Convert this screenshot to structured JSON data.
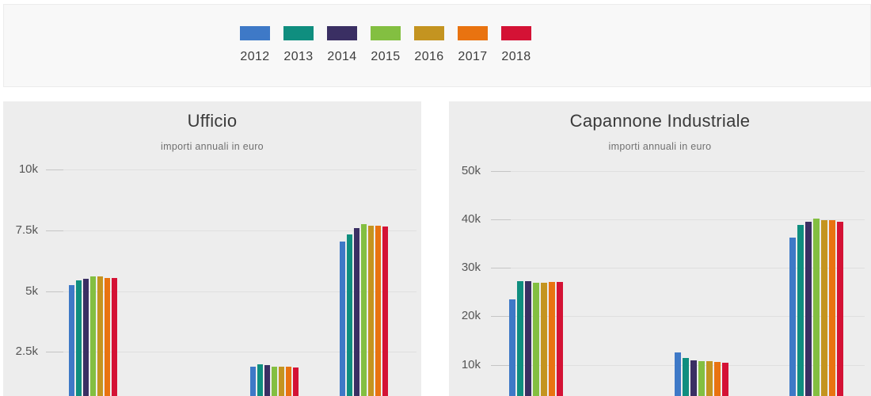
{
  "legend": {
    "items": [
      {
        "label": "2012",
        "color": "#3e79c7"
      },
      {
        "label": "2013",
        "color": "#0f8e7f"
      },
      {
        "label": "2014",
        "color": "#3a2f63"
      },
      {
        "label": "2015",
        "color": "#83bf41"
      },
      {
        "label": "2016",
        "color": "#c49420"
      },
      {
        "label": "2017",
        "color": "#e97310"
      },
      {
        "label": "2018",
        "color": "#d41235"
      }
    ]
  },
  "chart_data": [
    {
      "type": "bar",
      "title": "Ufficio",
      "subtitle": "importi annuali in euro",
      "unit": "euro",
      "categories": [
        "",
        "",
        ""
      ],
      "ylim": [
        0,
        10000
      ],
      "grid": true,
      "legend_position": "top",
      "y_ticks": [
        {
          "label": "10k",
          "value": 10000
        },
        {
          "label": "7.5k",
          "value": 7500
        },
        {
          "label": "5k",
          "value": 5000
        },
        {
          "label": "2.5k",
          "value": 2500
        }
      ],
      "series": [
        {
          "name": "2012",
          "color": "#3e79c7",
          "values": [
            5250,
            1900,
            7050
          ]
        },
        {
          "name": "2013",
          "color": "#0f8e7f",
          "values": [
            5450,
            2000,
            7350
          ]
        },
        {
          "name": "2014",
          "color": "#3a2f63",
          "values": [
            5500,
            1950,
            7600
          ]
        },
        {
          "name": "2015",
          "color": "#83bf41",
          "values": [
            5600,
            1900,
            7750
          ]
        },
        {
          "name": "2016",
          "color": "#c49420",
          "values": [
            5600,
            1900,
            7700
          ]
        },
        {
          "name": "2017",
          "color": "#e97310",
          "values": [
            5550,
            1900,
            7700
          ]
        },
        {
          "name": "2018",
          "color": "#d41235",
          "values": [
            5550,
            1850,
            7650
          ]
        }
      ]
    },
    {
      "type": "bar",
      "title": "Capannone Industriale",
      "subtitle": "importi annuali in euro",
      "unit": "euro",
      "categories": [
        "",
        "",
        ""
      ],
      "ylim": [
        0,
        50000
      ],
      "grid": true,
      "legend_position": "top",
      "y_ticks": [
        {
          "label": "50k",
          "value": 50000
        },
        {
          "label": "40k",
          "value": 40000
        },
        {
          "label": "30k",
          "value": 30000
        },
        {
          "label": "20k",
          "value": 20000
        },
        {
          "label": "10k",
          "value": 10000
        }
      ],
      "series": [
        {
          "name": "2012",
          "color": "#3e79c7",
          "values": [
            23500,
            12500,
            36200
          ]
        },
        {
          "name": "2013",
          "color": "#0f8e7f",
          "values": [
            27300,
            11400,
            38800
          ]
        },
        {
          "name": "2014",
          "color": "#3a2f63",
          "values": [
            27300,
            10900,
            39500
          ]
        },
        {
          "name": "2015",
          "color": "#83bf41",
          "values": [
            26900,
            10700,
            40100
          ]
        },
        {
          "name": "2016",
          "color": "#c49420",
          "values": [
            26900,
            10800,
            39800
          ]
        },
        {
          "name": "2017",
          "color": "#e97310",
          "values": [
            27100,
            10600,
            39800
          ]
        },
        {
          "name": "2018",
          "color": "#d41235",
          "values": [
            27000,
            10400,
            39500
          ]
        }
      ]
    }
  ]
}
